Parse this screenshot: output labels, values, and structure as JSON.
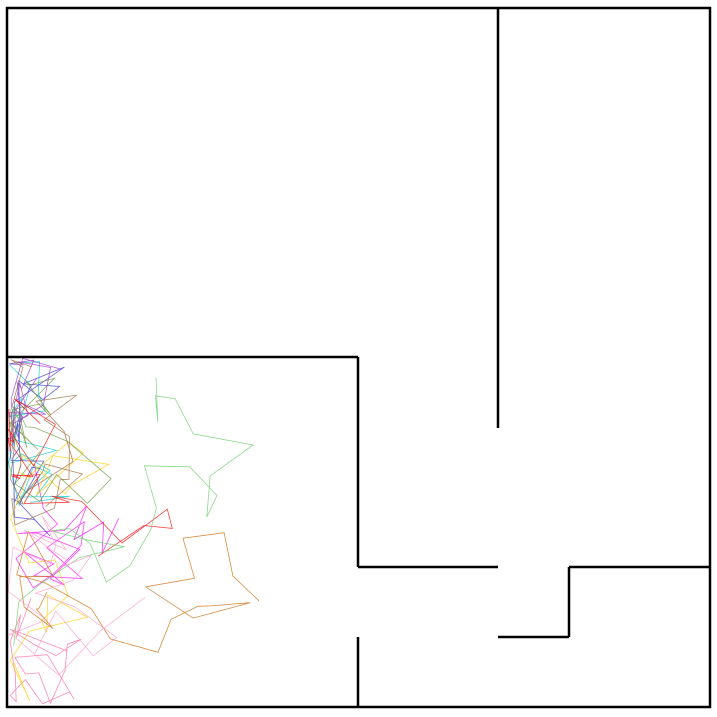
{
  "scene": {
    "background": "#ffffff",
    "wall_color": "#000000",
    "trail_colors": [
      "#ff00ff",
      "#00cccc",
      "#ff6699",
      "#3333cc",
      "#ffcc00",
      "#669933",
      "#cc6600",
      "#9933cc",
      "#ff0000",
      "#66cc66",
      "#996633",
      "#ff99cc"
    ],
    "trail_count": 12,
    "points_per_trail": 24
  }
}
